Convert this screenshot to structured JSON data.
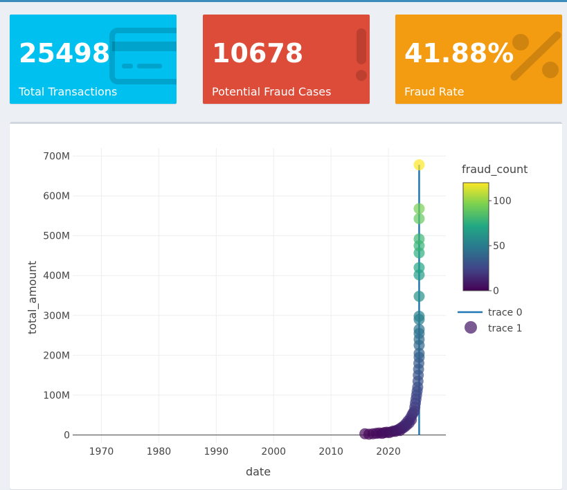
{
  "value_boxes": [
    {
      "value": "25498",
      "label": "Total Transactions",
      "color": "#00c0ef",
      "icon": "credit-card-icon"
    },
    {
      "value": "10678",
      "label": "Potential Fraud Cases",
      "color": "#dd4b39",
      "icon": "exclamation-icon"
    },
    {
      "value": "41.88%",
      "label": "Fraud Rate",
      "color": "#f39c12",
      "icon": "percent-icon"
    }
  ],
  "chart_data": {
    "type": "scatter",
    "xlabel": "date",
    "ylabel": "total_amount",
    "xlim": [
      1965,
      2030
    ],
    "ylim": [
      -20000000,
      720000000
    ],
    "x_ticks": [
      1970,
      1980,
      1990,
      2000,
      2010,
      2020
    ],
    "y_ticks": [
      0,
      100000000,
      200000000,
      300000000,
      400000000,
      500000000,
      600000000,
      700000000
    ],
    "y_tick_labels": [
      "0",
      "100M",
      "200M",
      "300M",
      "400M",
      "500M",
      "600M",
      "700M"
    ],
    "grid": true,
    "legend_position": "right",
    "colorbar": {
      "title": "fraud_count",
      "min": 0,
      "max": 120,
      "ticks": [
        0,
        50,
        100
      ],
      "colorscale": "viridis"
    },
    "series": [
      {
        "name": "trace 0",
        "kind": "line",
        "color": "#1f77b4",
        "x": [
          2025.35,
          2025.35
        ],
        "y": [
          0,
          678000000
        ]
      },
      {
        "name": "trace 1",
        "kind": "markers",
        "legend_color": "#7b5a94",
        "points": [
          [
            2015.9,
            3000000,
            3
          ],
          [
            2016.6,
            2000000,
            2
          ],
          [
            2017.3,
            3000000,
            2
          ],
          [
            2017.9,
            4000000,
            3
          ],
          [
            2018.4,
            5000000,
            4
          ],
          [
            2018.9,
            4000000,
            3
          ],
          [
            2019.3,
            6000000,
            4
          ],
          [
            2019.7,
            7000000,
            5
          ],
          [
            2020.1,
            6000000,
            4
          ],
          [
            2020.5,
            8000000,
            6
          ],
          [
            2020.9,
            10000000,
            7
          ],
          [
            2021.2,
            9000000,
            6
          ],
          [
            2021.5,
            12000000,
            8
          ],
          [
            2021.8,
            14000000,
            9
          ],
          [
            2022.0,
            11000000,
            8
          ],
          [
            2022.2,
            18000000,
            10
          ],
          [
            2022.4,
            16000000,
            9
          ],
          [
            2022.6,
            22000000,
            12
          ],
          [
            2022.8,
            20000000,
            11
          ],
          [
            2023.0,
            28000000,
            13
          ],
          [
            2023.2,
            25000000,
            12
          ],
          [
            2023.4,
            35000000,
            14
          ],
          [
            2023.6,
            30000000,
            13
          ],
          [
            2023.8,
            42000000,
            15
          ],
          [
            2024.0,
            38000000,
            14
          ],
          [
            2024.1,
            50000000,
            16
          ],
          [
            2024.3,
            55000000,
            18
          ],
          [
            2024.5,
            60000000,
            19
          ],
          [
            2024.6,
            70000000,
            20
          ],
          [
            2024.7,
            80000000,
            22
          ],
          [
            2024.8,
            90000000,
            24
          ],
          [
            2024.9,
            100000000,
            25
          ],
          [
            2025.0,
            110000000,
            27
          ],
          [
            2025.1,
            120000000,
            28
          ],
          [
            2025.15,
            135000000,
            30
          ],
          [
            2025.2,
            150000000,
            31
          ],
          [
            2025.25,
            165000000,
            33
          ],
          [
            2025.3,
            180000000,
            34
          ],
          [
            2025.35,
            195000000,
            36
          ],
          [
            2025.35,
            205000000,
            38
          ],
          [
            2025.35,
            225000000,
            40
          ],
          [
            2025.35,
            240000000,
            42
          ],
          [
            2025.35,
            255000000,
            44
          ],
          [
            2025.35,
            265000000,
            46
          ],
          [
            2025.35,
            290000000,
            50
          ],
          [
            2025.35,
            298000000,
            52
          ],
          [
            2025.35,
            348000000,
            60
          ],
          [
            2025.35,
            402000000,
            66
          ],
          [
            2025.35,
            420000000,
            70
          ],
          [
            2025.35,
            457000000,
            75
          ],
          [
            2025.35,
            475000000,
            78
          ],
          [
            2025.35,
            492000000,
            80
          ],
          [
            2025.35,
            543000000,
            90
          ],
          [
            2025.35,
            568000000,
            95
          ],
          [
            2025.35,
            678000000,
            120
          ]
        ]
      }
    ]
  }
}
